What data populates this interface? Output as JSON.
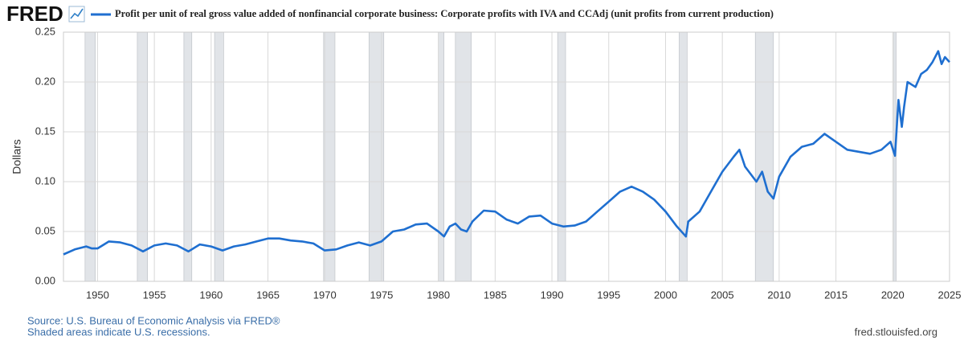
{
  "brand": "FRED",
  "source": "Source: U.S. Bureau of Economic Analysis via FRED®",
  "note": "Shaded areas indicate U.S. recessions.",
  "url": "fred.stlouisfed.org",
  "chart_data": {
    "type": "line",
    "ylabel": "Dollars",
    "xlim": [
      1947,
      2025
    ],
    "xticks": [
      1950,
      1955,
      1960,
      1965,
      1970,
      1975,
      1980,
      1985,
      1990,
      1995,
      2000,
      2005,
      2010,
      2015,
      2020,
      2025
    ],
    "ylim": [
      0,
      0.25
    ],
    "yticks": [
      {
        "value": 0,
        "label": "0.00"
      },
      0.05,
      {
        "value": 0.1,
        "label": "0.10"
      },
      0.15,
      {
        "value": 0.2,
        "label": "0.20"
      },
      0.25
    ],
    "grid": true,
    "recessions": [
      [
        1948.9,
        1949.8
      ],
      [
        1953.5,
        1954.4
      ],
      [
        1957.6,
        1958.3
      ],
      [
        1960.3,
        1961.1
      ],
      [
        1969.9,
        1970.9
      ],
      [
        1973.9,
        1975.2
      ],
      [
        1980.0,
        1980.5
      ],
      [
        1981.5,
        1982.9
      ],
      [
        1990.5,
        1991.2
      ],
      [
        2001.2,
        2001.9
      ],
      [
        2007.9,
        2009.5
      ],
      [
        2020.1,
        2020.3
      ]
    ],
    "series": [
      {
        "name": "Profit per unit of real gross value added of nonfinancial corporate business: Corporate profits with IVA and CCAdj (unit profits from current production)",
        "color": "#1f6fd0",
        "x": [
          1947,
          1948,
          1949,
          1949.5,
          1950,
          1951,
          1952,
          1953,
          1954,
          1955,
          1956,
          1957,
          1958,
          1959,
          1960,
          1961,
          1962,
          1963,
          1964,
          1965,
          1966,
          1967,
          1968,
          1969,
          1970,
          1971,
          1972,
          1973,
          1974,
          1975,
          1976,
          1977,
          1978,
          1979,
          1980,
          1980.5,
          1981,
          1981.5,
          1982,
          1982.5,
          1983,
          1984,
          1985,
          1986,
          1987,
          1988,
          1989,
          1990,
          1991,
          1992,
          1993,
          1994,
          1995,
          1996,
          1997,
          1998,
          1999,
          2000,
          2001,
          2001.8,
          2002,
          2003,
          2004,
          2005,
          2006,
          2006.5,
          2007,
          2008,
          2008.5,
          2009,
          2009.5,
          2010,
          2011,
          2012,
          2013,
          2014,
          2015,
          2016,
          2017,
          2018,
          2019,
          2019.8,
          2020.2,
          2020.5,
          2020.8,
          2021,
          2021.3,
          2022,
          2022.5,
          2023,
          2023.5,
          2024,
          2024.3,
          2024.6,
          2025
        ],
        "values": [
          0.027,
          0.032,
          0.035,
          0.033,
          0.033,
          0.04,
          0.039,
          0.036,
          0.03,
          0.036,
          0.038,
          0.036,
          0.03,
          0.037,
          0.035,
          0.031,
          0.035,
          0.037,
          0.04,
          0.043,
          0.043,
          0.041,
          0.04,
          0.038,
          0.031,
          0.032,
          0.036,
          0.039,
          0.036,
          0.04,
          0.05,
          0.052,
          0.057,
          0.058,
          0.05,
          0.045,
          0.055,
          0.058,
          0.052,
          0.05,
          0.06,
          0.071,
          0.07,
          0.062,
          0.058,
          0.065,
          0.066,
          0.058,
          0.055,
          0.056,
          0.06,
          0.07,
          0.08,
          0.09,
          0.095,
          0.09,
          0.082,
          0.07,
          0.055,
          0.045,
          0.06,
          0.07,
          0.09,
          0.11,
          0.125,
          0.132,
          0.115,
          0.1,
          0.11,
          0.09,
          0.083,
          0.105,
          0.125,
          0.135,
          0.138,
          0.148,
          0.14,
          0.132,
          0.13,
          0.128,
          0.132,
          0.14,
          0.126,
          0.182,
          0.155,
          0.175,
          0.2,
          0.195,
          0.208,
          0.212,
          0.22,
          0.231,
          0.218,
          0.225,
          0.22
        ]
      }
    ]
  }
}
